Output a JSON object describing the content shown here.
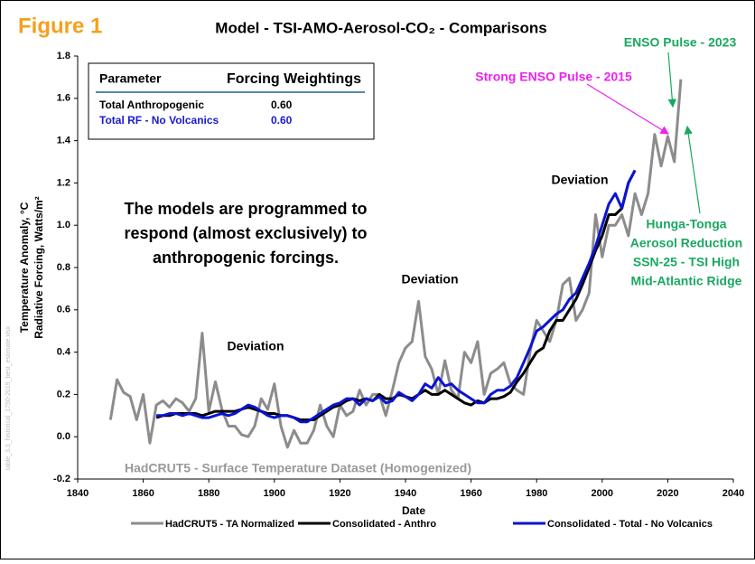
{
  "chart_data": {
    "type": "line",
    "figure_label": "Figure 1",
    "title": "Model - TSI-AMO-Aerosol-CO₂ - Comparisons",
    "xlabel": "Date",
    "ylabel": [
      "Temperature Anomaly, °C",
      "Radiative Forcing, Watts/m²"
    ],
    "source_note": "table_3.3_historical_1750-2019_best_estimate.xlsx",
    "xlim": [
      1840,
      2040
    ],
    "xticks": [
      1840,
      1860,
      1880,
      1900,
      1920,
      1940,
      1960,
      1980,
      2000,
      2020,
      2040
    ],
    "ylim": [
      -0.2,
      1.8
    ],
    "yticks": [
      -0.2,
      {
        "value": 0,
        "label": "0.0"
      },
      0.2,
      0.4,
      0.6,
      0.8,
      {
        "value": 1,
        "label": "1.0"
      },
      1.2,
      1.4,
      1.6,
      1.8
    ],
    "grid": false,
    "legend": "bottom",
    "x": [
      1850,
      1852,
      1854,
      1856,
      1858,
      1860,
      1862,
      1864,
      1866,
      1868,
      1870,
      1872,
      1874,
      1876,
      1878,
      1880,
      1882,
      1884,
      1886,
      1888,
      1890,
      1892,
      1894,
      1896,
      1898,
      1900,
      1902,
      1904,
      1906,
      1908,
      1910,
      1912,
      1914,
      1916,
      1918,
      1920,
      1922,
      1924,
      1926,
      1928,
      1930,
      1932,
      1934,
      1936,
      1938,
      1940,
      1942,
      1944,
      1946,
      1948,
      1950,
      1952,
      1954,
      1956,
      1958,
      1960,
      1962,
      1964,
      1966,
      1968,
      1970,
      1972,
      1974,
      1976,
      1978,
      1980,
      1982,
      1984,
      1986,
      1988,
      1990,
      1992,
      1994,
      1996,
      1998,
      2000,
      2002,
      2004,
      2006,
      2008,
      2010,
      2012,
      2014,
      2016,
      2018,
      2020,
      2022,
      2024
    ],
    "series": [
      {
        "name": "HadCRUT5 - TA Normalized",
        "color": "#8c8c8c",
        "width": 3,
        "values": [
          0.08,
          0.27,
          0.21,
          0.19,
          0.08,
          0.2,
          -0.03,
          0.15,
          0.17,
          0.14,
          0.18,
          0.16,
          0.12,
          0.18,
          0.49,
          0.12,
          0.26,
          0.13,
          0.05,
          0.05,
          0.01,
          0.0,
          0.05,
          0.18,
          0.13,
          0.25,
          0.05,
          -0.05,
          0.03,
          -0.03,
          -0.03,
          0.03,
          0.15,
          0.05,
          0.0,
          0.15,
          0.1,
          0.12,
          0.22,
          0.15,
          0.2,
          0.2,
          0.1,
          0.22,
          0.35,
          0.42,
          0.45,
          0.64,
          0.38,
          0.32,
          0.2,
          0.36,
          0.22,
          0.18,
          0.4,
          0.35,
          0.45,
          0.2,
          0.3,
          0.32,
          0.35,
          0.25,
          0.22,
          0.2,
          0.4,
          0.55,
          0.5,
          0.45,
          0.55,
          0.72,
          0.75,
          0.55,
          0.6,
          0.68,
          1.05,
          0.85,
          1.0,
          1.0,
          1.05,
          0.95,
          1.15,
          1.05,
          1.15,
          1.43,
          1.28,
          1.42,
          1.3,
          1.69
        ]
      },
      {
        "name": "Consolidated - Anthro",
        "color": "#000000",
        "width": 3,
        "values": [
          null,
          null,
          null,
          null,
          null,
          null,
          null,
          0.09,
          0.1,
          0.1,
          0.11,
          0.11,
          0.11,
          0.11,
          0.1,
          0.11,
          0.12,
          0.12,
          0.12,
          0.12,
          0.13,
          0.14,
          0.13,
          0.12,
          0.11,
          0.11,
          0.1,
          0.1,
          0.09,
          0.08,
          0.08,
          0.08,
          0.1,
          0.12,
          0.14,
          0.15,
          0.17,
          0.18,
          0.17,
          0.18,
          0.17,
          0.2,
          0.18,
          0.18,
          0.2,
          0.19,
          0.18,
          0.2,
          0.22,
          0.2,
          0.2,
          0.22,
          0.2,
          0.18,
          0.16,
          0.15,
          0.17,
          0.16,
          0.18,
          0.18,
          0.19,
          0.21,
          0.26,
          0.3,
          0.35,
          0.4,
          0.42,
          0.5,
          0.55,
          0.55,
          0.6,
          0.65,
          0.72,
          0.8,
          0.88,
          0.95,
          1.05,
          1.05,
          1.08,
          1.2,
          1.26,
          null,
          null,
          null,
          null,
          null,
          null,
          null
        ]
      },
      {
        "name": "Consolidated - Total - No Volcanics",
        "color": "#0a14d2",
        "width": 3,
        "values": [
          null,
          null,
          null,
          null,
          null,
          null,
          null,
          0.1,
          0.1,
          0.11,
          0.11,
          0.1,
          0.11,
          0.1,
          0.09,
          0.09,
          0.1,
          0.11,
          0.1,
          0.11,
          0.13,
          0.15,
          0.14,
          0.12,
          0.1,
          0.09,
          0.1,
          0.1,
          0.09,
          0.07,
          0.07,
          0.09,
          0.11,
          0.13,
          0.15,
          0.16,
          0.18,
          0.18,
          0.15,
          0.18,
          0.17,
          0.19,
          0.16,
          0.17,
          0.21,
          0.19,
          0.17,
          0.2,
          0.25,
          0.23,
          0.28,
          0.24,
          0.25,
          0.22,
          0.2,
          0.18,
          0.16,
          0.16,
          0.2,
          0.22,
          0.22,
          0.24,
          0.28,
          0.35,
          0.42,
          0.5,
          0.52,
          0.55,
          0.58,
          0.6,
          0.65,
          0.68,
          0.75,
          0.82,
          0.9,
          1.0,
          1.1,
          1.15,
          1.08,
          1.2,
          1.26,
          null,
          null,
          null,
          null,
          null,
          null,
          null
        ]
      }
    ],
    "inset_table": {
      "header": [
        "Parameter",
        "Forcing Weightings"
      ],
      "rows": [
        [
          "Total Anthropogenic",
          "0.60"
        ],
        [
          "Total RF - No Volcanics",
          "0.60"
        ]
      ]
    },
    "annotations": {
      "main_text": [
        "The models are programmed to",
        "respond (almost exclusively) to",
        "anthropogenic forcings."
      ],
      "deviation_1": "Deviation",
      "deviation_2": "Deviation",
      "deviation_3": "Deviation",
      "enso_2015": "Strong ENSO Pulse - 2015",
      "enso_2023": "ENSO Pulse - 2023",
      "causes": [
        "Hunga-Tonga",
        "Aerosol Reduction",
        "SSN-25 - TSI High",
        "Mid-Atlantic Ridge"
      ],
      "dataset": "HadCRUT5 - Surface Temperature Dataset (Homogenized)"
    }
  }
}
